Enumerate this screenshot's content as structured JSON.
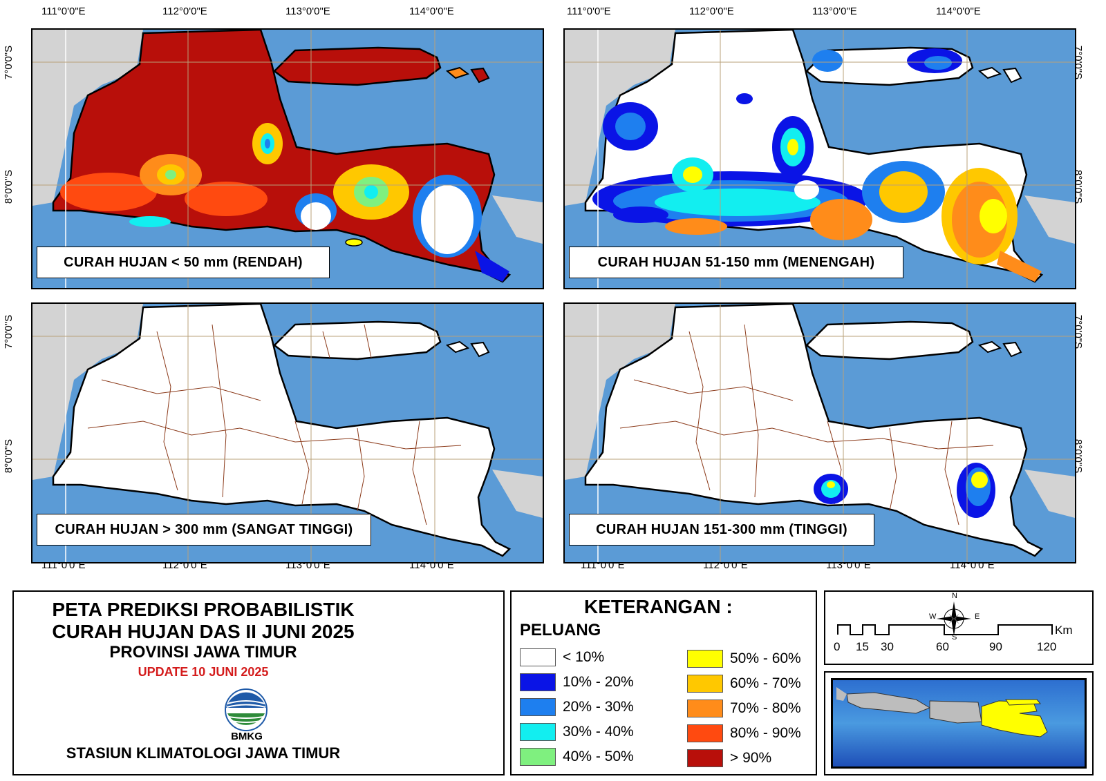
{
  "coordinates": {
    "longitudes": [
      "111°0'0\"E",
      "112°0'0\"E",
      "113°0'0\"E",
      "114°0'0\"E"
    ],
    "latitudes": [
      "7°0'0\"S",
      "8°0'0\"S"
    ]
  },
  "panels": [
    {
      "label": "CURAH HUJAN < 50 mm (RENDAH)",
      "dominant_class": "> 90%"
    },
    {
      "label": "CURAH HUJAN 51-150 mm (MENENGAH)",
      "dominant_class": "< 10%"
    },
    {
      "label": "CURAH HUJAN > 300 mm (SANGAT TINGGI)",
      "dominant_class": "< 10%"
    },
    {
      "label": "CURAH HUJAN 151-300 mm (TINGGI)",
      "dominant_class": "< 10%"
    }
  ],
  "title": {
    "line1": "PETA PREDIKSI PROBABILISTIK",
    "line2": "CURAH HUJAN DAS II JUNI 2025",
    "line3": "PROVINSI JAWA TIMUR",
    "update": "UPDATE 10 JUNI 2025",
    "logo_text": "BMKG",
    "station": "STASIUN KLIMATOLOGI JAWA TIMUR"
  },
  "legend": {
    "title": "KETERANGAN :",
    "subtitle": "PELUANG",
    "items": [
      {
        "label": "< 10%",
        "color": "#ffffff"
      },
      {
        "label": "10% - 20%",
        "color": "#0a14e6"
      },
      {
        "label": "20% - 30%",
        "color": "#1e7fef"
      },
      {
        "label": "30% - 40%",
        "color": "#12eef0"
      },
      {
        "label": "40% - 50%",
        "color": "#7ff07f"
      },
      {
        "label": "50% - 60%",
        "color": "#ffff00"
      },
      {
        "label": "60% - 70%",
        "color": "#ffc800"
      },
      {
        "label": "70% - 80%",
        "color": "#ff8c1a"
      },
      {
        "label": "80% - 90%",
        "color": "#ff4a10"
      },
      {
        "label": "> 90%",
        "color": "#b80f0a"
      }
    ]
  },
  "scale": {
    "compass": {
      "n": "N",
      "s": "S",
      "e": "E",
      "w": "W"
    },
    "ticks": [
      "0",
      "15",
      "30",
      "60",
      "90",
      "120"
    ],
    "unit": "Km"
  },
  "colors": {
    "sea": "#5b9bd6",
    "land_other": "#d3d3d3",
    "boundary": "#8b3a1a",
    "inset_province": "#ffff00"
  }
}
